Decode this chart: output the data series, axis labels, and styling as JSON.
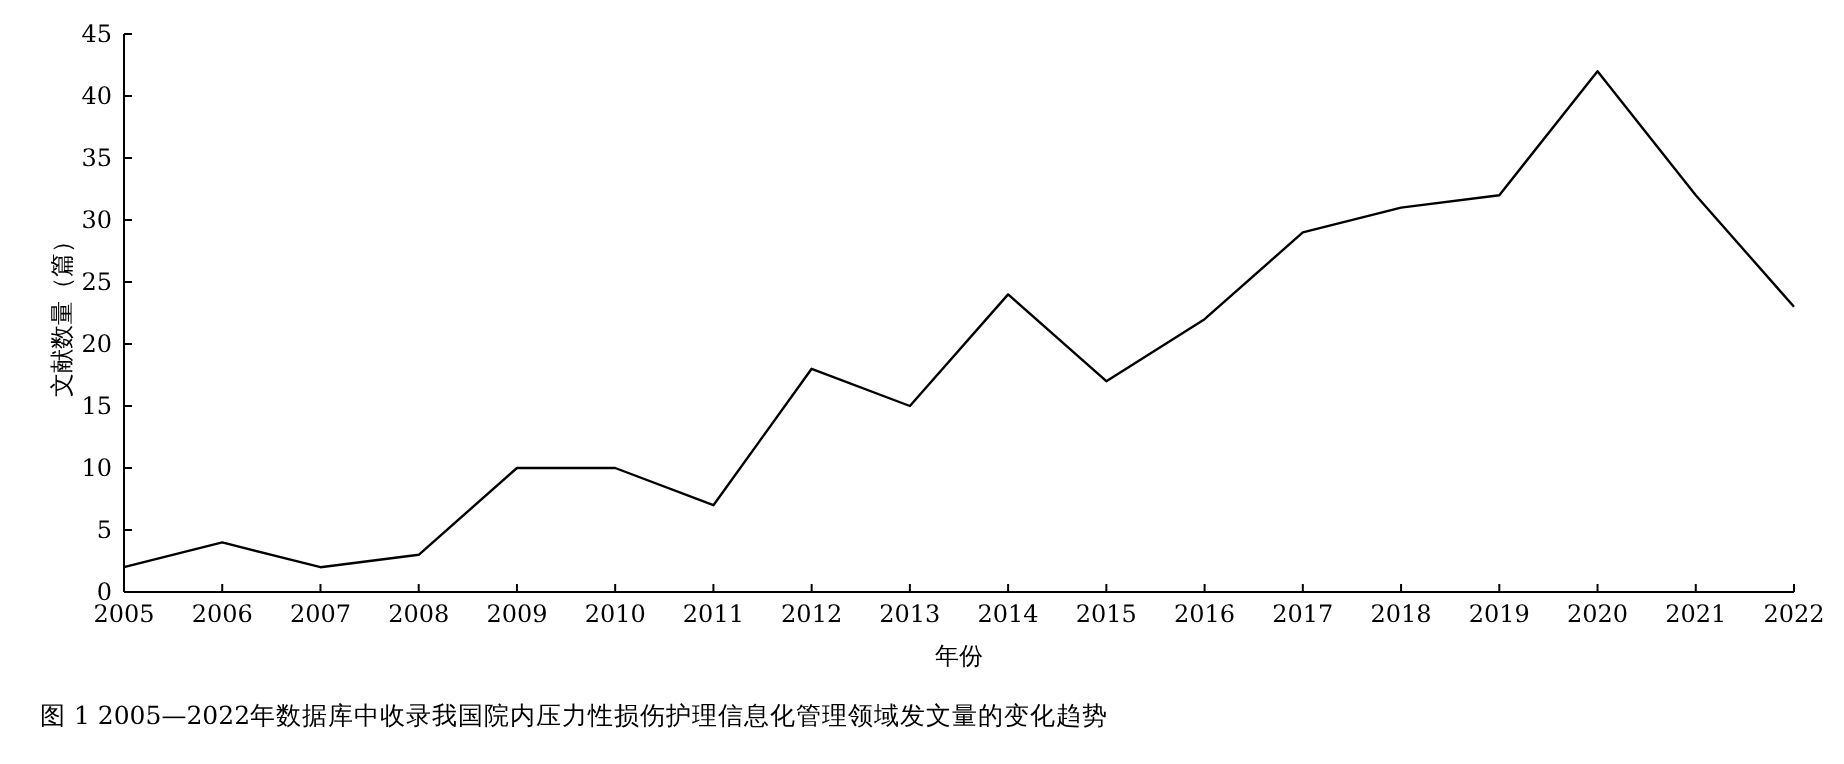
{
  "chart_data": {
    "type": "line",
    "title": "图 1  2005—2022年数据库中收录我国院内压力性损伤护理信息化管理领域发文量的变化趋势",
    "xlabel": "年份",
    "ylabel": "文献数量（篇）",
    "x": [
      2005,
      2006,
      2007,
      2008,
      2009,
      2010,
      2011,
      2012,
      2013,
      2014,
      2015,
      2016,
      2017,
      2018,
      2019,
      2020,
      2021,
      2022
    ],
    "series": [
      {
        "color": "#000000",
        "values": [
          2,
          4,
          2,
          3,
          10,
          10,
          7,
          18,
          15,
          24,
          17,
          22,
          29,
          31,
          32,
          42,
          32,
          23
        ]
      }
    ],
    "xlim": [
      2005,
      2022
    ],
    "xticks": [
      2005,
      2006,
      2007,
      2008,
      2009,
      2010,
      2011,
      2012,
      2013,
      2014,
      2015,
      2016,
      2017,
      2018,
      2019,
      2020,
      2021,
      2022
    ],
    "ylim": [
      0,
      45
    ],
    "yticks": [
      0,
      5,
      10,
      15,
      20,
      25,
      30,
      35,
      40,
      45
    ],
    "grid": false,
    "marker": "none",
    "line_style": "solid"
  }
}
